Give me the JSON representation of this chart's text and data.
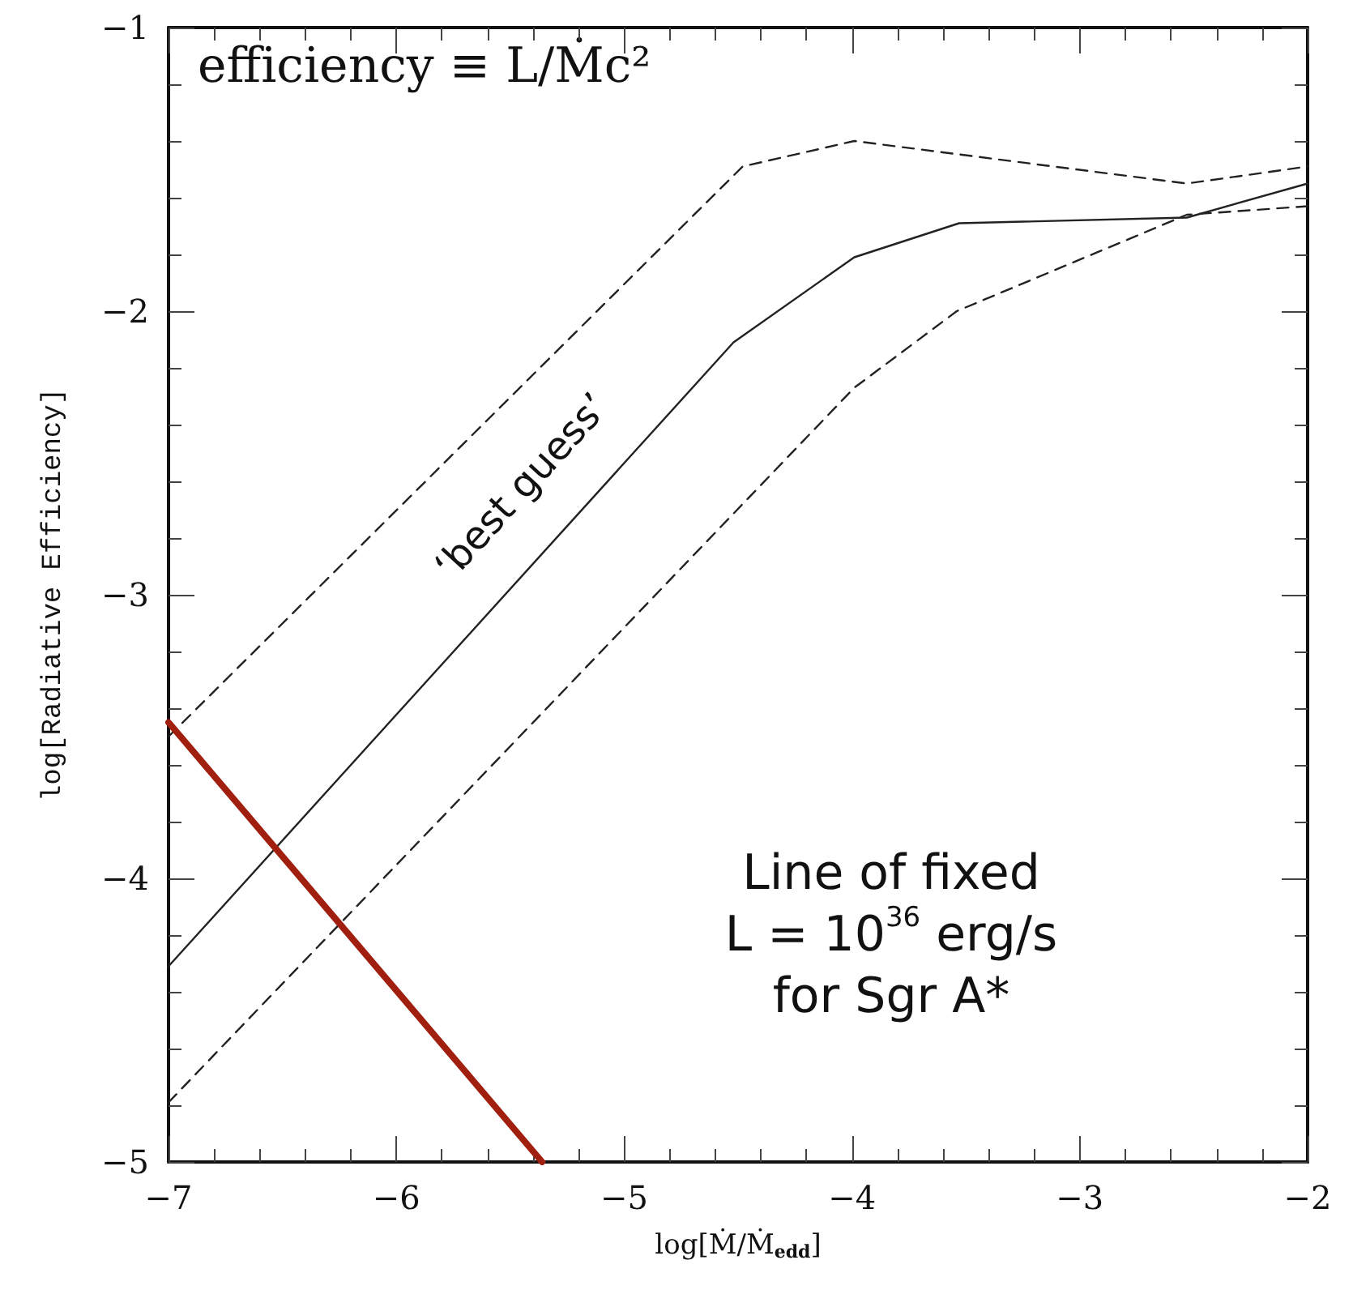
{
  "chart_data": {
    "type": "line",
    "title": "efficiency ≡ L/Ṁc²",
    "xlabel": "log[Ṁ/Ṁ$_{edd}$]",
    "ylabel": "log[Radiative Efficiency]",
    "xlim": [
      -7,
      -2
    ],
    "xticks": [
      -7,
      -6,
      -5,
      -4,
      -3,
      -2
    ],
    "ylim": [
      -5,
      -1
    ],
    "yticks": [
      -5,
      -4,
      -3,
      -2,
      -1
    ],
    "grid": false,
    "marker": "none",
    "series": [
      {
        "color": "#222222",
        "line_style": "solid",
        "x": [
          -7,
          -4.52,
          -3.99,
          -3.53,
          -2.53,
          -2
        ],
        "values": [
          -4.31,
          -2.11,
          -1.81,
          -1.69,
          -1.67,
          -1.55
        ]
      },
      {
        "color": "#222222",
        "line_style": "dashed",
        "x": [
          -7,
          -4.48,
          -3.99,
          -2.53,
          -2
        ],
        "values": [
          -3.5,
          -1.49,
          -1.4,
          -1.55,
          -1.49
        ]
      },
      {
        "color": "#222222",
        "line_style": "dashed",
        "x": [
          -7,
          -3.99,
          -3.54,
          -2.53,
          -2
        ],
        "values": [
          -4.79,
          -2.27,
          -2.0,
          -1.66,
          -1.63
        ]
      },
      {
        "color": "#a01f0e",
        "line_style": "solid",
        "x": [
          -7,
          -5.36
        ],
        "values": [
          -3.45,
          -5
        ]
      }
    ],
    "annotations": [
      "‘best guess’",
      "Line of fixed L = 10$^{36}$ erg/s for Sgr A*"
    ]
  }
}
